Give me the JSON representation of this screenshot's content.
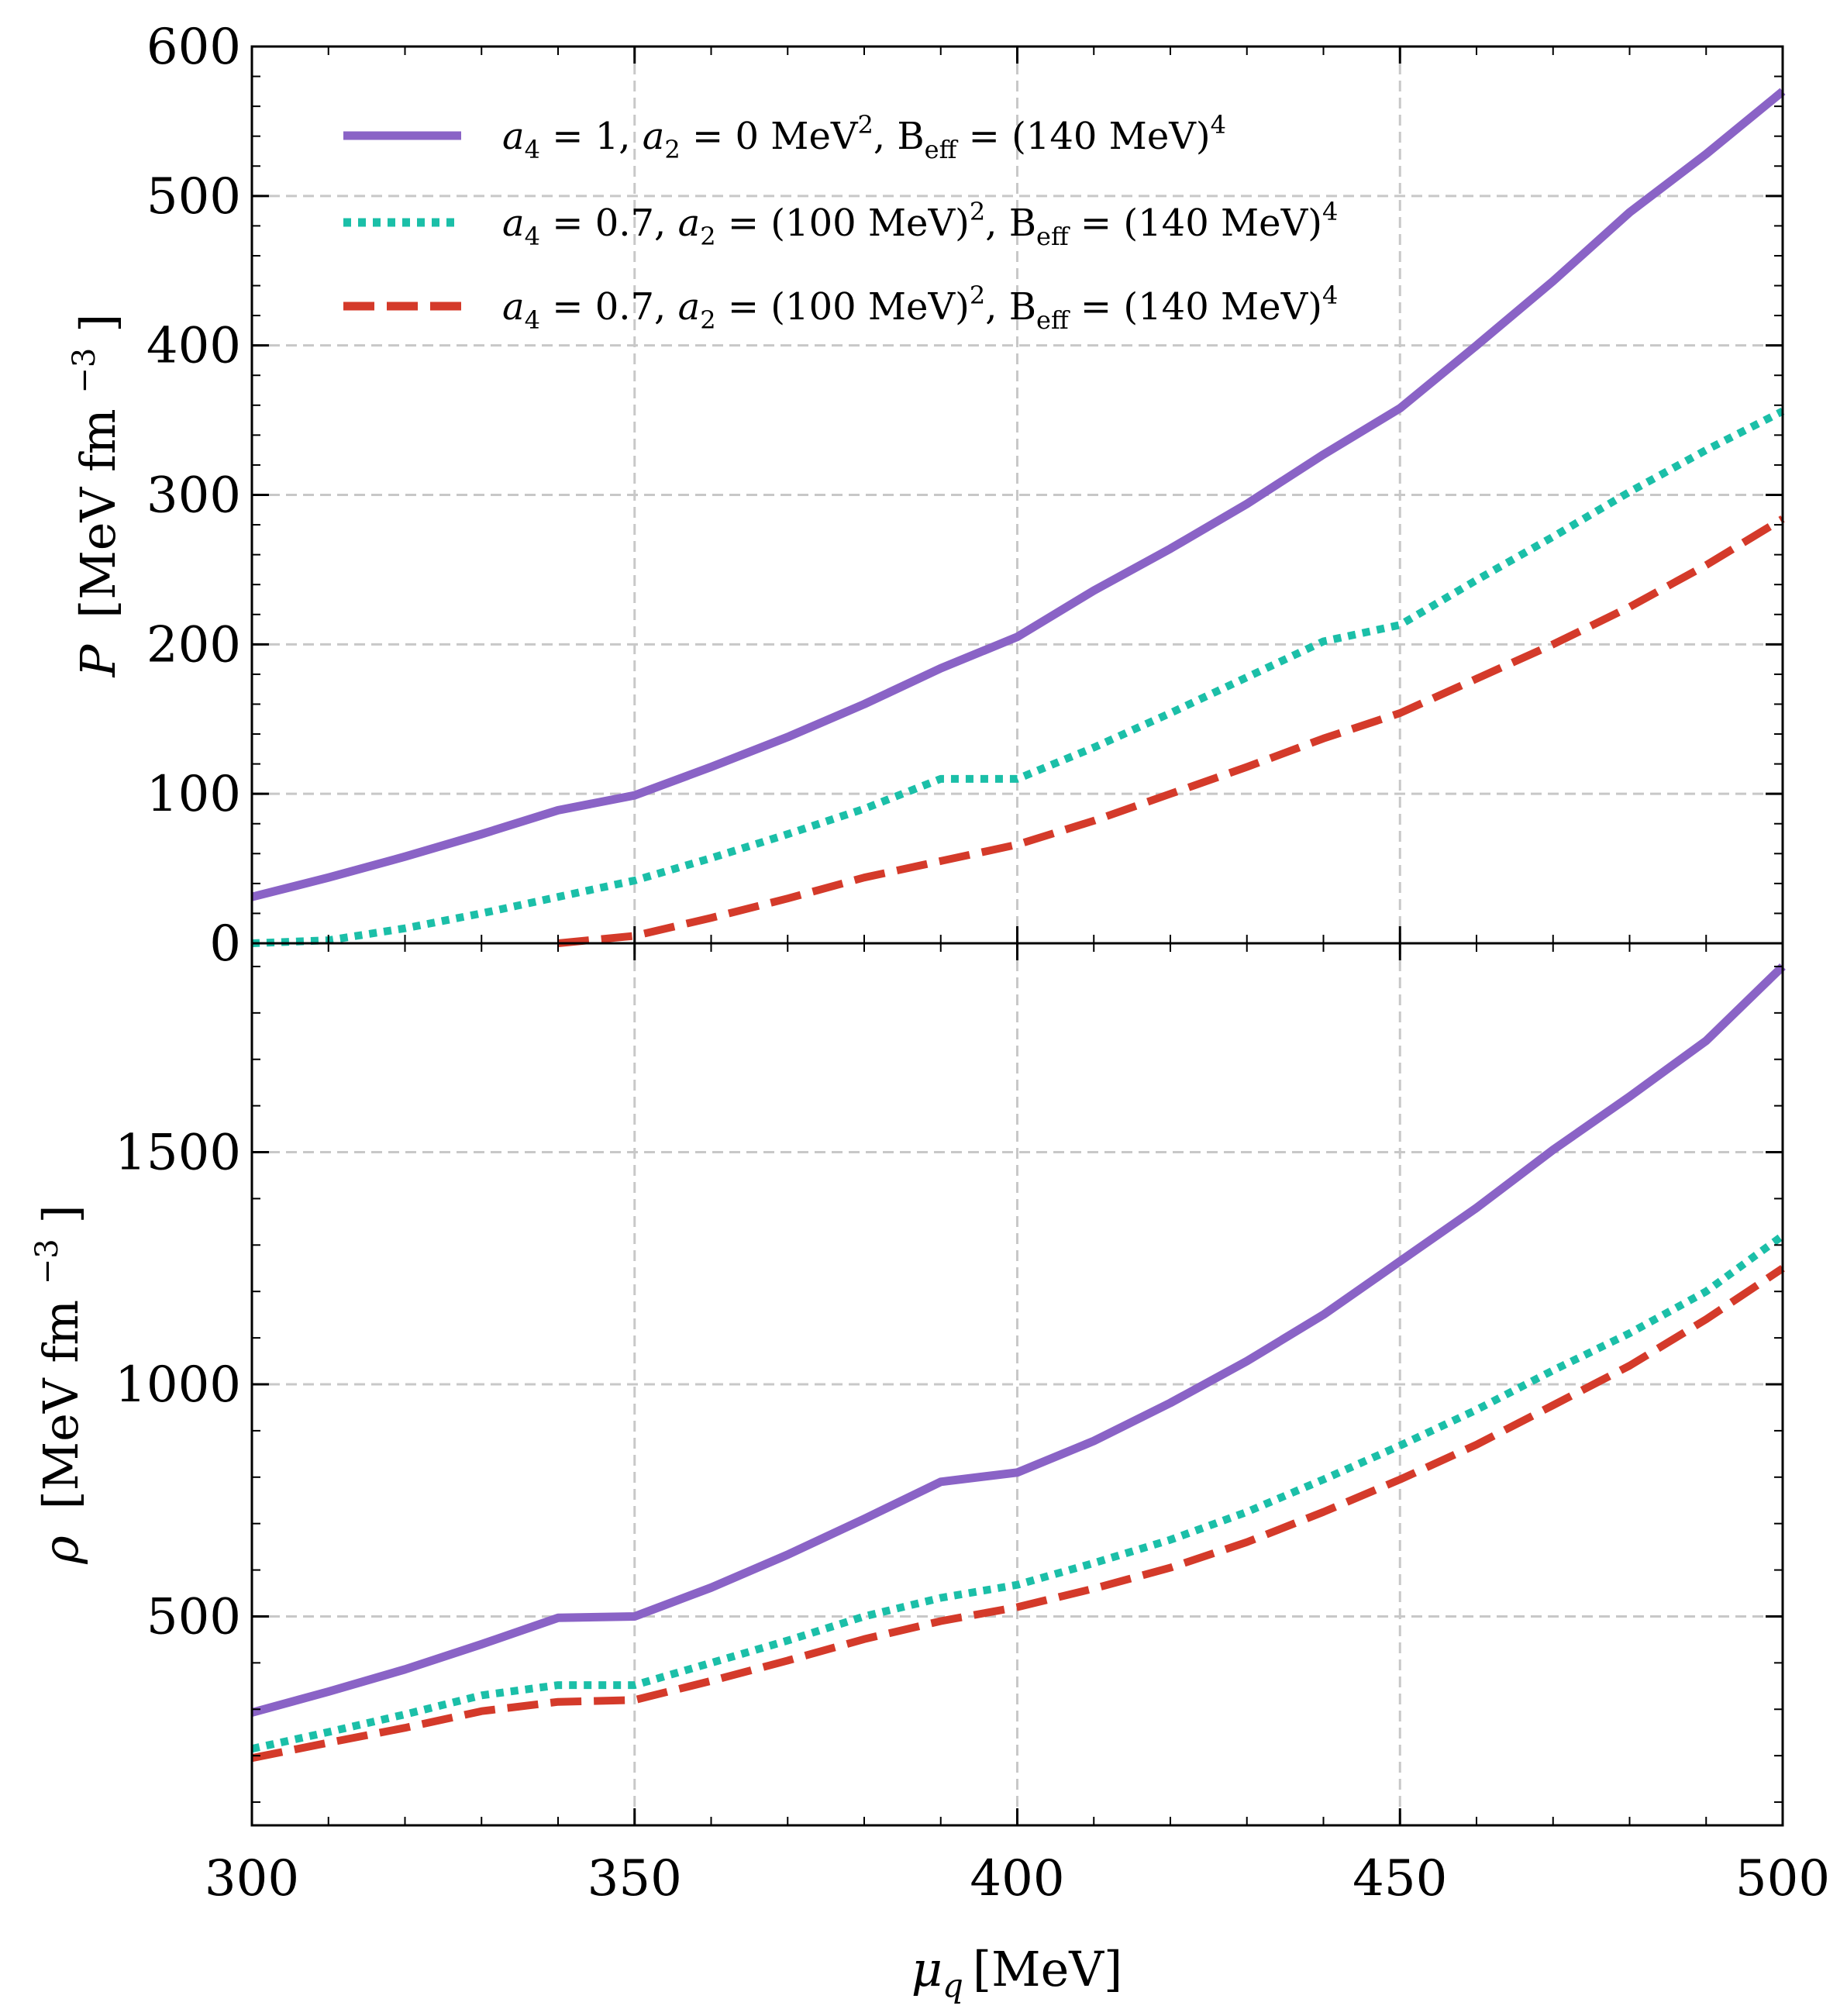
{
  "chart_data": [
    {
      "type": "line",
      "panel": "top",
      "ylabel_symbol": "P",
      "ylabel_units": "[MeV fm",
      "ylabel_exp": "−3",
      "ylabel_close": "]",
      "xlim": [
        300,
        500
      ],
      "ylim": [
        0,
        600
      ],
      "yticks": [
        0,
        100,
        200,
        300,
        400,
        500,
        600
      ],
      "ytick_labels": [
        "0",
        "100",
        "200",
        "300",
        "400",
        "500",
        "600"
      ],
      "grid": true,
      "x": [
        300,
        310,
        320,
        330,
        340,
        350,
        360,
        370,
        380,
        390,
        400,
        410,
        420,
        430,
        440,
        450,
        460,
        470,
        480,
        490,
        500
      ],
      "series": [
        {
          "name": "a4 = 1, a2 = 0 MeV², Beff = (140 MeV)⁴",
          "style": "solid",
          "color": "#8a63c6",
          "values": [
            31,
            44,
            58,
            73,
            89,
            99,
            118,
            138,
            160,
            184,
            205,
            236,
            264,
            294,
            327,
            358,
            400,
            443,
            489,
            528,
            570
          ]
        },
        {
          "name": "a4 = 0.7, a2 = (100 MeV)², Beff = (140 MeV)⁴",
          "style": "dotted",
          "color": "#1bbfa8",
          "values": [
            0,
            2,
            10,
            20,
            31,
            42,
            57,
            73,
            90,
            110,
            110,
            131,
            154,
            178,
            202,
            213,
            243,
            272,
            302,
            330,
            356
          ]
        },
        {
          "name": "a4 = 0.7, a2 = (100 MeV)², Beff = (140 MeV)⁴",
          "style": "dashed",
          "color": "#d43a2a",
          "values": [
            null,
            null,
            null,
            null,
            0,
            5,
            17,
            30,
            44,
            55,
            66,
            82,
            100,
            118,
            137,
            154,
            177,
            200,
            225,
            253,
            284
          ]
        }
      ]
    },
    {
      "type": "line",
      "panel": "bottom",
      "ylabel_symbol": "ρ",
      "ylabel_units": "[MeV fm",
      "ylabel_exp": "−3",
      "ylabel_close": "]",
      "xlim": [
        300,
        500
      ],
      "ylim": [
        50,
        1950
      ],
      "yticks": [
        500,
        1000,
        1500
      ],
      "ytick_labels": [
        "500",
        "1000",
        "1500"
      ],
      "grid": true,
      "x": [
        300,
        310,
        320,
        330,
        340,
        350,
        360,
        370,
        380,
        390,
        400,
        410,
        420,
        430,
        440,
        450,
        460,
        470,
        480,
        490,
        500
      ],
      "series": [
        {
          "name": "a4 = 1, a2 = 0 MeV², Beff = (140 MeV)⁴",
          "style": "solid",
          "color": "#8a63c6",
          "values": [
            293,
            338,
            386,
            440,
            497,
            500,
            562,
            633,
            710,
            790,
            810,
            878,
            960,
            1050,
            1150,
            1265,
            1380,
            1505,
            1620,
            1740,
            1900
          ]
        },
        {
          "name": "a4 = 0.7, a2 = (100 MeV)², Beff = (140 MeV)⁴",
          "style": "dotted",
          "color": "#1bbfa8",
          "values": [
            215,
            251,
            289,
            330,
            352,
            352,
            400,
            448,
            500,
            540,
            568,
            615,
            665,
            725,
            795,
            868,
            945,
            1030,
            1110,
            1200,
            1320
          ]
        },
        {
          "name": "a4 = 0.7, a2 = (100 MeV)², Beff = (140 MeV)⁴",
          "style": "dashed",
          "color": "#d43a2a",
          "values": [
            195,
            228,
            260,
            296,
            316,
            320,
            361,
            405,
            451,
            490,
            520,
            560,
            605,
            660,
            725,
            795,
            870,
            955,
            1040,
            1140,
            1250
          ]
        }
      ]
    }
  ],
  "xaxis": {
    "xticks": [
      300,
      350,
      400,
      450,
      500
    ],
    "xtick_labels": [
      "300",
      "350",
      "400",
      "450",
      "500"
    ],
    "label_symbol": "μ",
    "label_sub": "q",
    "label_units": "[MeV]"
  },
  "legend": {
    "placement": "top-left",
    "entries": [
      {
        "style": "solid",
        "color": "#8a63c6",
        "a4": "a",
        "a4_sub": "4",
        "text_1": " = 1, ",
        "a2": "a",
        "a2_sub": "2",
        "text_2": " = 0 MeV",
        "text_2_sup": "2",
        "text_3": ", B",
        "beff_sub": "eff",
        "text_4": " = (140 MeV)",
        "text_4_sup": "4"
      },
      {
        "style": "dotted",
        "color": "#1bbfa8",
        "a4": "a",
        "a4_sub": "4",
        "text_1": " = 0.7, ",
        "a2": "a",
        "a2_sub": "2",
        "text_2": " = (100 MeV)",
        "text_2_sup": "2",
        "text_3": ", B",
        "beff_sub": "eff",
        "text_4": " = (140 MeV)",
        "text_4_sup": "4"
      },
      {
        "style": "dashed",
        "color": "#d43a2a",
        "a4": "a",
        "a4_sub": "4",
        "text_1": " = 0.7, ",
        "a2": "a",
        "a2_sub": "2",
        "text_2": " = (100 MeV)",
        "text_2_sup": "2",
        "text_3": ", B",
        "beff_sub": "eff",
        "text_4": " = (140 MeV)",
        "text_4_sup": "4"
      }
    ]
  }
}
